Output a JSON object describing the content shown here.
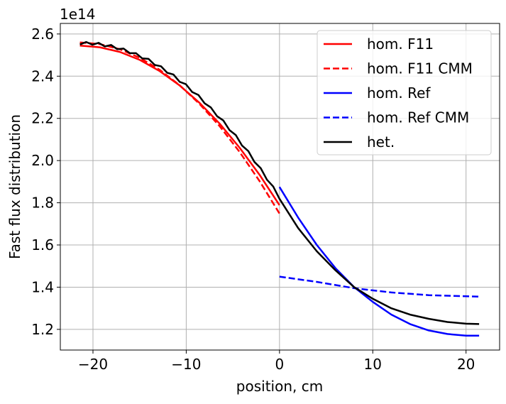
{
  "chart_data": {
    "type": "line",
    "title": "",
    "xlabel": "position, cm",
    "ylabel": "Fast flux distribution",
    "y_offset_label": "1e14",
    "xlim": [
      -23.5,
      23.6
    ],
    "ylim": [
      1.102,
      2.65
    ],
    "xticks": [
      -20,
      -10,
      0,
      10,
      20
    ],
    "xtick_labels": [
      "−20",
      "−10",
      "0",
      "10",
      "20"
    ],
    "yticks": [
      1.2,
      1.4,
      1.6,
      1.8,
      2.0,
      2.2,
      2.4,
      2.6
    ],
    "ytick_labels": [
      "1.2",
      "1.4",
      "1.6",
      "1.8",
      "2.0",
      "2.2",
      "2.4",
      "2.6"
    ],
    "grid": true,
    "legend_position": "top-right",
    "series": [
      {
        "name": "hom. F11",
        "color": "#ff0000",
        "dash": false,
        "x": [
          -21.4,
          -19.26,
          -17.12,
          -14.98,
          -12.84,
          -10.7,
          -8.56,
          -6.42,
          -4.28,
          -2.14,
          0
        ],
        "y": [
          2.545,
          2.537,
          2.515,
          2.477,
          2.424,
          2.356,
          2.273,
          2.175,
          2.061,
          1.933,
          1.789
        ]
      },
      {
        "name": "hom. F11 CMM",
        "color": "#ff0000",
        "dash": true,
        "x": [
          -21.4,
          -19.26,
          -17.12,
          -14.98,
          -12.84,
          -10.7,
          -8.56,
          -6.42,
          -4.28,
          -2.14,
          0
        ],
        "y": [
          2.56,
          2.552,
          2.528,
          2.487,
          2.43,
          2.357,
          2.268,
          2.163,
          2.041,
          1.903,
          1.749
        ]
      },
      {
        "name": "hom. Ref",
        "color": "#0000ff",
        "dash": false,
        "x": [
          0,
          2,
          4,
          6,
          8,
          10,
          12,
          14,
          16,
          18,
          20,
          21.4
        ],
        "y": [
          1.875,
          1.73,
          1.6,
          1.49,
          1.4,
          1.33,
          1.27,
          1.225,
          1.195,
          1.178,
          1.17,
          1.17
        ]
      },
      {
        "name": "hom. Ref CMM",
        "color": "#0000ff",
        "dash": true,
        "x": [
          0,
          4,
          8,
          12,
          16,
          21.4
        ],
        "y": [
          1.45,
          1.425,
          1.395,
          1.375,
          1.362,
          1.355
        ]
      },
      {
        "name": "het.",
        "color": "#000000",
        "dash": false,
        "x": [
          -21.4,
          -20.73,
          -20.06,
          -19.39,
          -18.73,
          -18.06,
          -17.39,
          -16.72,
          -16.05,
          -15.38,
          -14.71,
          -14.04,
          -13.37,
          -12.71,
          -12.04,
          -11.37,
          -10.7,
          -10.03,
          -9.36,
          -8.69,
          -8.02,
          -7.36,
          -6.69,
          -6.02,
          -5.35,
          -4.68,
          -4.01,
          -3.34,
          -2.68,
          -2.01,
          -1.34,
          -0.67,
          0,
          2,
          4,
          6,
          8,
          10,
          12,
          14,
          16,
          18,
          20,
          21.4
        ],
        "y": [
          2.55,
          2.562,
          2.549,
          2.558,
          2.541,
          2.548,
          2.528,
          2.531,
          2.509,
          2.509,
          2.484,
          2.482,
          2.453,
          2.447,
          2.416,
          2.408,
          2.373,
          2.362,
          2.325,
          2.311,
          2.271,
          2.252,
          2.21,
          2.19,
          2.144,
          2.121,
          2.071,
          2.045,
          1.993,
          1.964,
          1.909,
          1.877,
          1.819,
          1.68,
          1.57,
          1.48,
          1.4,
          1.345,
          1.3,
          1.27,
          1.25,
          1.235,
          1.227,
          1.225
        ]
      }
    ]
  }
}
